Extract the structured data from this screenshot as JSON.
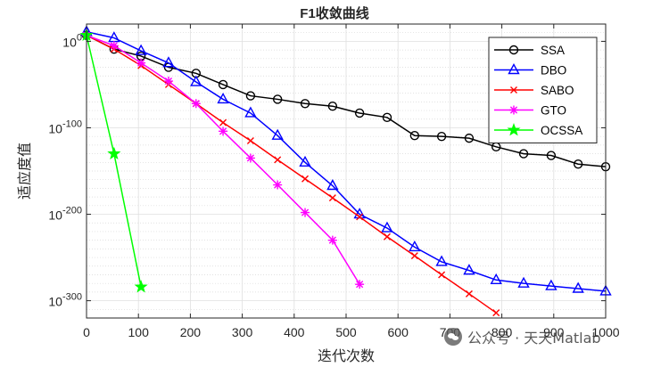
{
  "chart_data": {
    "type": "line",
    "title": "F1收敛曲线",
    "xlabel": "迭代次数",
    "ylabel": "适应度值",
    "yscale": "log10",
    "xlim": [
      0,
      1000
    ],
    "ylim_exponent": [
      -320,
      20
    ],
    "xticks": [
      0,
      100,
      200,
      300,
      400,
      500,
      600,
      700,
      800,
      900,
      1000
    ],
    "xtick_labels": [
      "0",
      "100",
      "200",
      "300",
      "400",
      "500",
      "600",
      "700",
      "800",
      "900",
      "1000"
    ],
    "yticks_exponent": [
      0,
      -100,
      -200,
      -300
    ],
    "ytick_labels": [
      {
        "base": "10",
        "exp": "0"
      },
      {
        "base": "10",
        "exp": "-100"
      },
      {
        "base": "10",
        "exp": "-200"
      },
      {
        "base": "10",
        "exp": "-300"
      }
    ],
    "grid": true,
    "legend_position": "top-right",
    "series": [
      {
        "name": "SSA",
        "color": "#000000",
        "marker": "circle",
        "x": [
          0,
          53,
          105,
          158,
          211,
          263,
          316,
          368,
          421,
          474,
          526,
          579,
          632,
          684,
          737,
          789,
          842,
          895,
          947,
          1000
        ],
        "y_exponent": [
          7,
          -9,
          -17,
          -30,
          -37,
          -50,
          -63,
          -67,
          -72,
          -75,
          -83,
          -88,
          -109,
          -110,
          -112,
          -122,
          -130,
          -132,
          -142,
          -145
        ]
      },
      {
        "name": "DBO",
        "color": "#0000ff",
        "marker": "triangle",
        "x": [
          0,
          53,
          105,
          158,
          211,
          263,
          316,
          368,
          421,
          474,
          526,
          579,
          632,
          684,
          737,
          789,
          842,
          895,
          947,
          1000
        ],
        "y_exponent": [
          11,
          4,
          -11,
          -25,
          -47,
          -67,
          -83,
          -109,
          -140,
          -167,
          -200,
          -216,
          -238,
          -255,
          -265,
          -276,
          -280,
          -283,
          -286,
          -289
        ]
      },
      {
        "name": "SABO",
        "color": "#ff0000",
        "marker": "x",
        "x": [
          0,
          53,
          105,
          158,
          211,
          263,
          316,
          368,
          421,
          474,
          526,
          579,
          632,
          684,
          737,
          789
        ],
        "y_exponent": [
          7,
          -9,
          -28,
          -50,
          -72,
          -94,
          -115,
          -137,
          -159,
          -181,
          -203,
          -226,
          -248,
          -270,
          -292,
          -314
        ]
      },
      {
        "name": "GTO",
        "color": "#ff00ff",
        "marker": "star",
        "x": [
          0,
          53,
          105,
          158,
          211,
          263,
          316,
          368,
          421,
          474,
          526
        ],
        "y_exponent": [
          7,
          -5,
          -25,
          -46,
          -72,
          -104,
          -135,
          -166,
          -198,
          -230,
          -281
        ]
      },
      {
        "name": "OCSSA",
        "color": "#00ff00",
        "marker": "pentagram",
        "x": [
          0,
          53,
          105
        ],
        "y_exponent": [
          7,
          -130,
          -284
        ]
      }
    ]
  },
  "watermark": {
    "text": "公众号 · 天天Matlab"
  }
}
